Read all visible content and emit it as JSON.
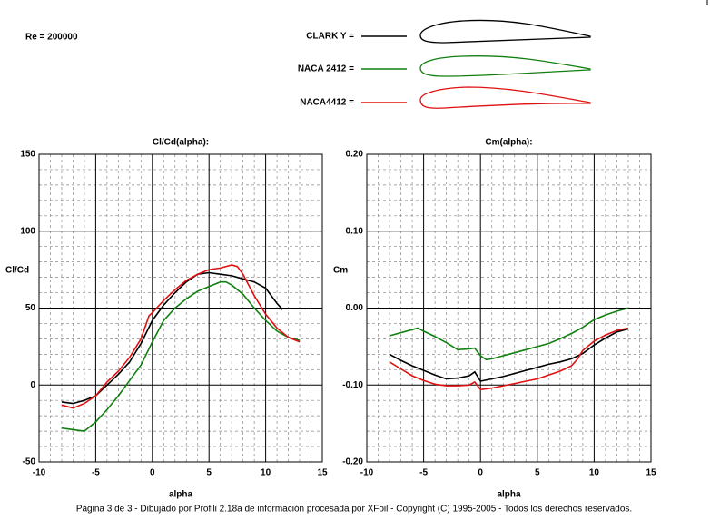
{
  "re_label": "Re = 200000",
  "legend": [
    {
      "label": "CLARK Y =",
      "color": "#000000"
    },
    {
      "label": "NACA 2412 =",
      "color": "#108010"
    },
    {
      "label": "NACA4412 =",
      "color": "#e01010"
    }
  ],
  "footer": "Página 3 de 3 - Dibujado por Profili 2.18a de información procesada por XFoil - Copyright (C) 1995-2005 - Todos los derechos reservados.",
  "chart_data": [
    {
      "type": "line",
      "title": "Cl/Cd(alpha):",
      "x_label": "alpha",
      "y_label": "Cl/Cd",
      "xlim": [
        -10,
        15
      ],
      "xticks": [
        -10,
        -5,
        0,
        5,
        10,
        15
      ],
      "ylim": [
        -50,
        150
      ],
      "yticks": [
        -50,
        0,
        50,
        100,
        150
      ],
      "grid": true,
      "series": [
        {
          "color": "#000000",
          "x": [
            -8,
            -7,
            -6,
            -5,
            -4,
            -3,
            -2,
            -1,
            0,
            1,
            2,
            3,
            4,
            5,
            6,
            7,
            8,
            9,
            10,
            11,
            11.5
          ],
          "values": [
            -11,
            -12,
            -10,
            -7,
            0,
            7,
            15,
            27,
            42,
            52,
            60,
            67,
            72,
            73,
            72,
            71,
            69,
            67,
            63,
            53,
            49
          ]
        },
        {
          "color": "#108010",
          "x": [
            -8,
            -7,
            -6,
            -5,
            -4,
            -3,
            -2,
            -1,
            0,
            1,
            2,
            3,
            4,
            5,
            6,
            6.5,
            7,
            8,
            9,
            10,
            11,
            12,
            13
          ],
          "values": [
            -28,
            -29,
            -30,
            -24,
            -16,
            -7,
            3,
            13,
            28,
            42,
            50,
            56,
            61,
            64,
            67,
            67,
            65,
            59,
            50,
            42,
            35,
            31,
            29
          ]
        },
        {
          "color": "#e01010",
          "x": [
            -8,
            -7,
            -6,
            -5,
            -4,
            -3,
            -2,
            -1,
            -0.3,
            0,
            1,
            2,
            3,
            4,
            5,
            6,
            7,
            7.5,
            8,
            9,
            10,
            11,
            12,
            13
          ],
          "values": [
            -13,
            -15,
            -12,
            -7,
            2,
            9,
            18,
            30,
            45,
            47,
            55,
            62,
            68,
            72,
            75,
            76,
            78,
            77,
            72,
            58,
            46,
            37,
            31,
            28
          ]
        }
      ]
    },
    {
      "type": "line",
      "title": "Cm(alpha):",
      "x_label": "alpha",
      "y_label": "Cm",
      "xlim": [
        -10,
        15
      ],
      "xticks": [
        -10,
        -5,
        0,
        5,
        10,
        15
      ],
      "ylim": [
        -0.2,
        0.2
      ],
      "yticks": [
        {
          "value": -0.2,
          "label": "-0.20"
        },
        {
          "value": -0.1,
          "label": "-0.10"
        },
        {
          "value": 0,
          "label": "0.00"
        },
        {
          "value": 0.1,
          "label": "0.10"
        },
        {
          "value": 0.2,
          "label": "0.20"
        }
      ],
      "grid": true,
      "series": [
        {
          "color": "#000000",
          "x": [
            -8,
            -7,
            -6,
            -5,
            -4,
            -3,
            -2,
            -1,
            -0.5,
            0,
            1,
            2,
            3,
            4,
            5,
            6,
            7,
            8,
            9,
            10,
            11,
            12,
            13
          ],
          "values": [
            -0.06,
            -0.068,
            -0.075,
            -0.081,
            -0.087,
            -0.092,
            -0.091,
            -0.088,
            -0.083,
            -0.095,
            -0.092,
            -0.089,
            -0.085,
            -0.081,
            -0.077,
            -0.073,
            -0.07,
            -0.066,
            -0.059,
            -0.048,
            -0.039,
            -0.031,
            -0.027
          ]
        },
        {
          "color": "#108010",
          "x": [
            -8,
            -6,
            -5.5,
            -5,
            -4,
            -3,
            -2,
            -1,
            -0.5,
            0,
            0.5,
            1,
            2,
            3,
            4,
            5,
            6,
            7,
            8,
            9,
            10,
            11,
            12,
            13
          ],
          "values": [
            -0.036,
            -0.028,
            -0.026,
            -0.03,
            -0.037,
            -0.045,
            -0.054,
            -0.053,
            -0.052,
            -0.062,
            -0.067,
            -0.066,
            -0.062,
            -0.058,
            -0.054,
            -0.05,
            -0.046,
            -0.04,
            -0.033,
            -0.025,
            -0.015,
            -0.009,
            -0.004,
            0.0
          ]
        },
        {
          "color": "#e01010",
          "x": [
            -8,
            -7,
            -6,
            -5,
            -4,
            -3,
            -2,
            -1,
            -0.5,
            0,
            1,
            2,
            3,
            4,
            5,
            6,
            7,
            8,
            8.5,
            9,
            10,
            11,
            12,
            13
          ],
          "values": [
            -0.07,
            -0.079,
            -0.088,
            -0.094,
            -0.099,
            -0.101,
            -0.101,
            -0.1,
            -0.096,
            -0.106,
            -0.104,
            -0.101,
            -0.098,
            -0.095,
            -0.092,
            -0.087,
            -0.082,
            -0.075,
            -0.067,
            -0.055,
            -0.043,
            -0.035,
            -0.029,
            -0.026
          ]
        }
      ]
    }
  ]
}
